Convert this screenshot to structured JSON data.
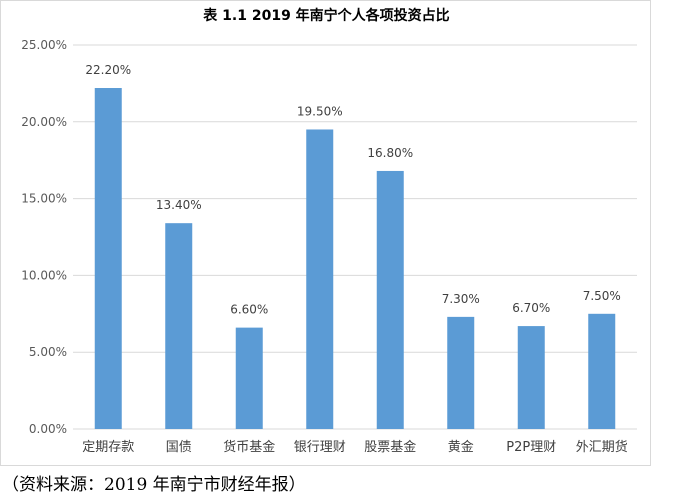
{
  "chart_data": {
    "type": "bar",
    "title": "表 1.1  2019 年南宁个人各项投资占比",
    "categories": [
      "定期存款",
      "国债",
      "货币基金",
      "银行理财",
      "股票基金",
      "黄金",
      "P2P理财",
      "外汇期货"
    ],
    "values": [
      22.2,
      13.4,
      6.6,
      19.5,
      16.8,
      7.3,
      6.7,
      7.5
    ],
    "data_labels": [
      "22.20%",
      "13.40%",
      "6.60%",
      "19.50%",
      "16.80%",
      "7.30%",
      "6.70%",
      "7.50%"
    ],
    "y_ticks": [
      0,
      5,
      10,
      15,
      20,
      25
    ],
    "y_tick_labels": [
      "0.00%",
      "5.00%",
      "10.00%",
      "15.00%",
      "20.00%",
      "25.00%"
    ],
    "ylim": [
      0,
      25
    ],
    "xlabel": "",
    "ylabel": "",
    "grid": true,
    "legend": "none",
    "bar_color": "#5b9bd5",
    "grid_color": "#d9d9d9"
  },
  "source_note": "（资料来源：2019 年南宁市财经年报）"
}
